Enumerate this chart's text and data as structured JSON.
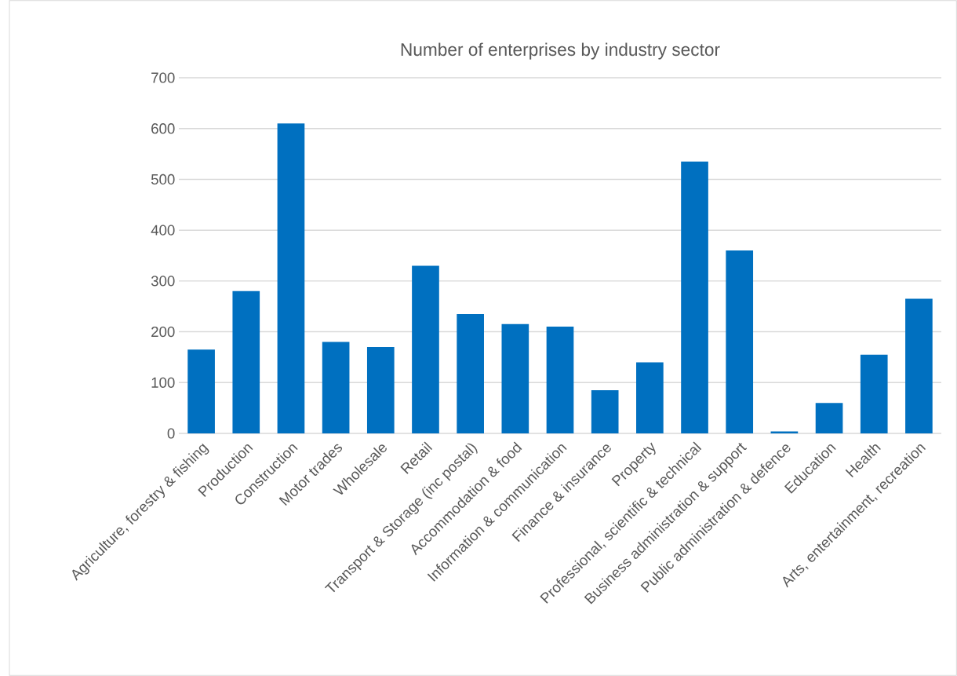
{
  "chart_data": {
    "type": "bar",
    "title": "Number of enterprises by industry sector",
    "categories": [
      "Agriculture, forestry & fishing",
      "Production",
      "Construction",
      "Motor trades",
      "Wholesale",
      "Retail",
      "Transport & Storage (inc postal)",
      "Accommodation & food",
      "Information & communication",
      "Finance & insurance",
      "Property",
      "Professional, scientific & technical",
      "Business administration & support",
      "Public administration & defence",
      "Education",
      "Health",
      "Arts, entertainment, recreation"
    ],
    "values": [
      165,
      280,
      610,
      180,
      170,
      330,
      235,
      215,
      210,
      85,
      140,
      535,
      360,
      4,
      60,
      155,
      265
    ],
    "color": "#0070c0",
    "ylim": [
      0,
      700
    ],
    "yticks": [
      0,
      100,
      200,
      300,
      400,
      500,
      600,
      700
    ],
    "grid": "y"
  }
}
